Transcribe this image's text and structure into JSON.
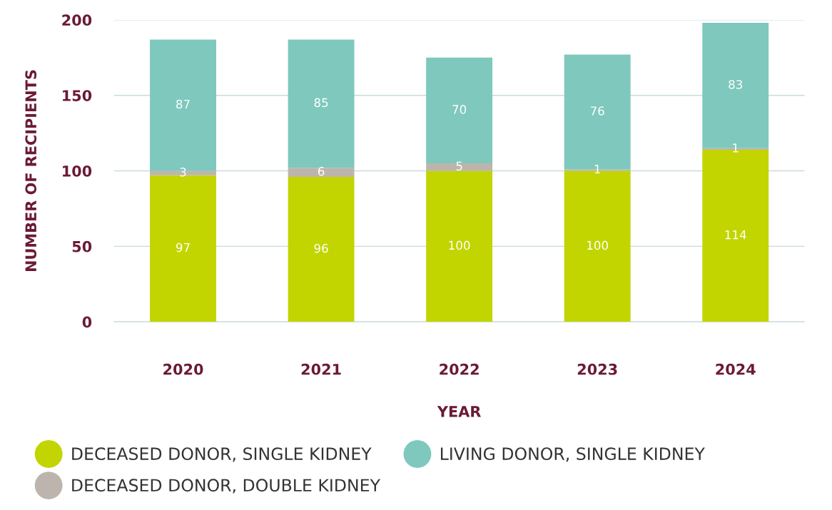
{
  "chart_data": {
    "type": "bar",
    "stacked": true,
    "xlabel": "YEAR",
    "ylabel": "NUMBER OF RECIPIENTS",
    "categories": [
      "2020",
      "2021",
      "2022",
      "2023",
      "2024"
    ],
    "series": [
      {
        "name": "DECEASED DONOR, SINGLE KIDNEY",
        "color": "#c2d500",
        "values": [
          97,
          96,
          100,
          100,
          114
        ]
      },
      {
        "name": "DECEASED DONOR, DOUBLE KIDNEY",
        "color": "#bdb5ad",
        "values": [
          3,
          6,
          5,
          1,
          1
        ]
      },
      {
        "name": "LIVING DONOR, SINGLE KIDNEY",
        "color": "#7fc8bd",
        "values": [
          87,
          85,
          70,
          76,
          83
        ]
      }
    ],
    "ylim": [
      0,
      200
    ],
    "yticks": [
      0,
      50,
      100,
      150,
      200
    ],
    "grid": "y",
    "data_labels": true,
    "legend": "bottom"
  }
}
